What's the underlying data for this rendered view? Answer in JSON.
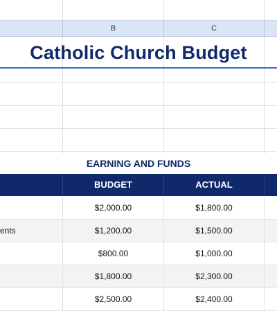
{
  "spreadsheet": {
    "columns": [
      "B",
      "C"
    ],
    "title": "Catholic Church Budget",
    "section_title": "EARNING AND FUNDS",
    "table": {
      "headers": {
        "budget": "BUDGET",
        "actual": "ACTUAL"
      },
      "rows": [
        {
          "label": "",
          "budget": "$2,000.00",
          "actual": "$1,800.00"
        },
        {
          "label": "ents",
          "budget": "$1,200.00",
          "actual": "$1,500.00"
        },
        {
          "label": "",
          "budget": "$800.00",
          "actual": "$1,000.00"
        },
        {
          "label": "",
          "budget": "$1,800.00",
          "actual": "$2,300.00"
        },
        {
          "label": "",
          "budget": "$2,500.00",
          "actual": "$2,400.00"
        }
      ]
    }
  },
  "colors": {
    "title": "#10296b",
    "header_fill": "#10296b",
    "column_header_fill": "#dae6f8",
    "underline": "#2f6bd1"
  }
}
